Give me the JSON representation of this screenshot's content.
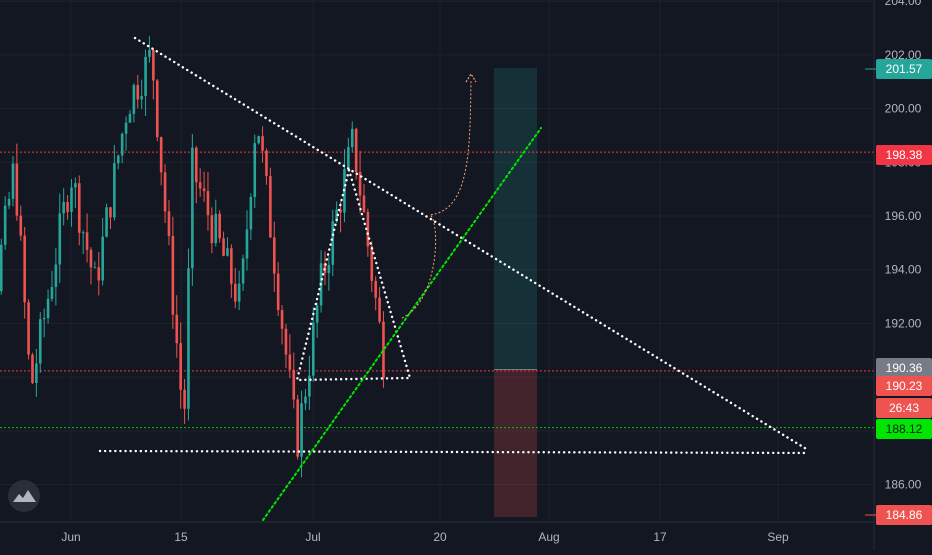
{
  "chart_data": {
    "type": "candlestick",
    "title": "",
    "xlabel": "",
    "ylabel": "",
    "ylim": [
      183.9,
      204.0
    ],
    "grid": true,
    "y_ticks": [
      "186.00",
      "188.00",
      "190.00",
      "192.00",
      "194.00",
      "196.00",
      "198.00",
      "200.00",
      "202.00",
      "204.00"
    ],
    "x_ticks": [
      "Jun",
      "15",
      "Jul",
      "20",
      "Aug",
      "17",
      "Sep"
    ],
    "price_labels": [
      {
        "value": "201.57",
        "color": "#26a69a"
      },
      {
        "value": "198.38",
        "color": "#f23645"
      },
      {
        "value": "190.36",
        "color": "#787b86"
      },
      {
        "value": "190.23",
        "color": "#ef5350"
      },
      {
        "value": "26:43",
        "color": "#ef5350"
      },
      {
        "value": "188.12",
        "color": "#00e600"
      },
      {
        "value": "184.86",
        "color": "#ef5350"
      }
    ],
    "horizontal_lines": [
      {
        "y": 198.38,
        "color": "#f23645"
      },
      {
        "y": 190.23,
        "color": "#f23645"
      },
      {
        "y": 188.12,
        "color": "#00c800"
      }
    ],
    "approx_swing_points": [
      {
        "date": "May 21",
        "price": 190.0
      },
      {
        "date": "May 25",
        "price": 197.9
      },
      {
        "date": "May 27",
        "price": 189.5
      },
      {
        "date": "Jun 1",
        "price": 197.6
      },
      {
        "date": "Jun 4",
        "price": 193.4
      },
      {
        "date": "Jun 8",
        "price": 200.2
      },
      {
        "date": "Jun 11",
        "price": 202.0
      },
      {
        "date": "Jun 15",
        "price": 188.2
      },
      {
        "date": "Jun 16",
        "price": 197.8
      },
      {
        "date": "Jun 22",
        "price": 192.7
      },
      {
        "date": "Jun 24",
        "price": 199.9
      },
      {
        "date": "Jun 29",
        "price": 187.5
      },
      {
        "date": "Jul 2",
        "price": 193.5
      },
      {
        "date": "Jul 6",
        "price": 198.8
      },
      {
        "date": "Jul 10",
        "price": 190.2
      }
    ],
    "candle_colors": {
      "up": "#26a69a",
      "down": "#ef5350"
    },
    "colors": {
      "background": "#131722",
      "text": "#b2b5be",
      "target_zone": "#26a69a",
      "stop_zone": "#ef5350",
      "trendline": "#00e600",
      "drawing": "#ffffff",
      "projection": "#f7a26e"
    }
  },
  "logo_icon": "tradingview-cloud-icon"
}
